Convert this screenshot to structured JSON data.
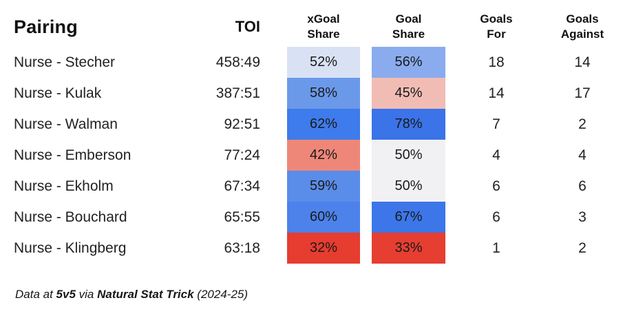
{
  "header": {
    "pairing": "Pairing",
    "toi": "TOI",
    "xgoal_share": "xGoal\nShare",
    "goal_share": "Goal\nShare",
    "goals_for": "Goals\nFor",
    "goals_against": "Goals\nAgainst"
  },
  "rows": [
    {
      "pairing": "Nurse - Stecher",
      "toi": "458:49",
      "xgoal_share": "52%",
      "xgoal_color": "#d9e2f4",
      "goal_share": "56%",
      "goal_color": "#8aabee",
      "goals_for": "18",
      "goals_against": "14"
    },
    {
      "pairing": "Nurse - Kulak",
      "toi": "387:51",
      "xgoal_share": "58%",
      "xgoal_color": "#6b99ea",
      "goal_share": "45%",
      "goal_color": "#f1bcb4",
      "goals_for": "14",
      "goals_against": "17"
    },
    {
      "pairing": "Nurse - Walman",
      "toi": "92:51",
      "xgoal_share": "62%",
      "xgoal_color": "#3e7bec",
      "goal_share": "78%",
      "goal_color": "#3b73e9",
      "goals_for": "7",
      "goals_against": "2"
    },
    {
      "pairing": "Nurse - Emberson",
      "toi": "77:24",
      "xgoal_share": "42%",
      "xgoal_color": "#ef8778",
      "goal_share": "50%",
      "goal_color": "#f1f1f3",
      "goals_for": "4",
      "goals_against": "4"
    },
    {
      "pairing": "Nurse - Ekholm",
      "toi": "67:34",
      "xgoal_share": "59%",
      "xgoal_color": "#5a8ce9",
      "goal_share": "50%",
      "goal_color": "#f1f1f3",
      "goals_for": "6",
      "goals_against": "6"
    },
    {
      "pairing": "Nurse - Bouchard",
      "toi": "65:55",
      "xgoal_share": "60%",
      "xgoal_color": "#4d82ea",
      "goal_share": "67%",
      "goal_color": "#3c76e9",
      "goals_for": "6",
      "goals_against": "3"
    },
    {
      "pairing": "Nurse - Klingberg",
      "toi": "63:18",
      "xgoal_share": "32%",
      "xgoal_color": "#e73c30",
      "goal_share": "33%",
      "goal_color": "#e63e30",
      "goals_for": "1",
      "goals_against": "2"
    }
  ],
  "footer": {
    "prefix": "Data at ",
    "strength": "5v5",
    "middle": " via ",
    "source": "Natural Stat Trick",
    "suffix": " (2024-25)"
  },
  "chart_data": {
    "type": "table",
    "title": "Nurse defensive pairings",
    "columns": [
      "Pairing",
      "TOI",
      "xGoal Share",
      "Goal Share",
      "Goals For",
      "Goals Against"
    ],
    "rows": [
      [
        "Nurse - Stecher",
        "458:49",
        52,
        56,
        18,
        14
      ],
      [
        "Nurse - Kulak",
        "387:51",
        58,
        45,
        14,
        17
      ],
      [
        "Nurse - Walman",
        "92:51",
        62,
        78,
        7,
        2
      ],
      [
        "Nurse - Emberson",
        "77:24",
        42,
        50,
        4,
        4
      ],
      [
        "Nurse - Ekholm",
        "67:34",
        59,
        50,
        6,
        6
      ],
      [
        "Nurse - Bouchard",
        "65:55",
        60,
        67,
        6,
        3
      ],
      [
        "Nurse - Klingberg",
        "63:18",
        32,
        33,
        1,
        2
      ]
    ],
    "heatmap_columns": [
      "xGoal Share",
      "Goal Share"
    ],
    "colormap": {
      "low": "#e73c30",
      "mid": "#f1f1f3",
      "high": "#3b73e9",
      "midpoint_percent": 50
    },
    "note": "Data at 5v5 via Natural Stat Trick (2024-25)"
  }
}
